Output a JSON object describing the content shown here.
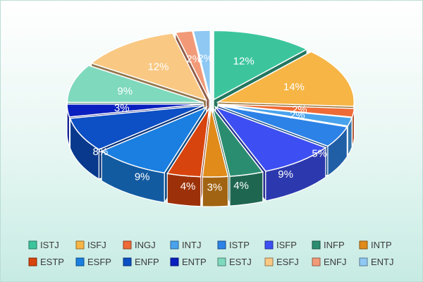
{
  "chart_data": {
    "type": "pie",
    "title": "",
    "style": "3d-exploded",
    "legend_position": "bottom",
    "slices": [
      {
        "name": "ISTJ",
        "value": 12,
        "label": "12%",
        "color": "#3cc59d"
      },
      {
        "name": "ISFJ",
        "value": 14,
        "label": "14%",
        "color": "#f6b545"
      },
      {
        "name": "INGJ",
        "value": 2,
        "label": "2%",
        "color": "#ee6a36"
      },
      {
        "name": "INTJ",
        "value": 2,
        "label": "2%",
        "color": "#49a3ec"
      },
      {
        "name": "ISTP",
        "value": 5,
        "label": "5%",
        "color": "#2c82e6"
      },
      {
        "name": "ISFP",
        "value": 9,
        "label": "9%",
        "color": "#3d4ff2"
      },
      {
        "name": "INFP",
        "value": 4,
        "label": "4%",
        "color": "#2b8d70"
      },
      {
        "name": "INTP",
        "value": 3,
        "label": "3%",
        "color": "#e08b1a"
      },
      {
        "name": "ESTP",
        "value": 4,
        "label": "4%",
        "color": "#d8440d"
      },
      {
        "name": "ESFP",
        "value": 9,
        "label": "9%",
        "color": "#1a7fe0"
      },
      {
        "name": "ENFP",
        "value": 8,
        "label": "8%",
        "color": "#0d4fc4"
      },
      {
        "name": "ENTP",
        "value": 3,
        "label": "3%",
        "color": "#0a1fbf"
      },
      {
        "name": "ESTJ",
        "value": 9,
        "label": "9%",
        "color": "#7fd9bd"
      },
      {
        "name": "ESFJ",
        "value": 12,
        "label": "12%",
        "color": "#f9c883"
      },
      {
        "name": "ENFJ",
        "value": 2,
        "label": "2%",
        "color": "#f29a78"
      },
      {
        "name": "ENTJ",
        "value": 2,
        "label": "2%",
        "color": "#8ec8f3"
      }
    ]
  }
}
